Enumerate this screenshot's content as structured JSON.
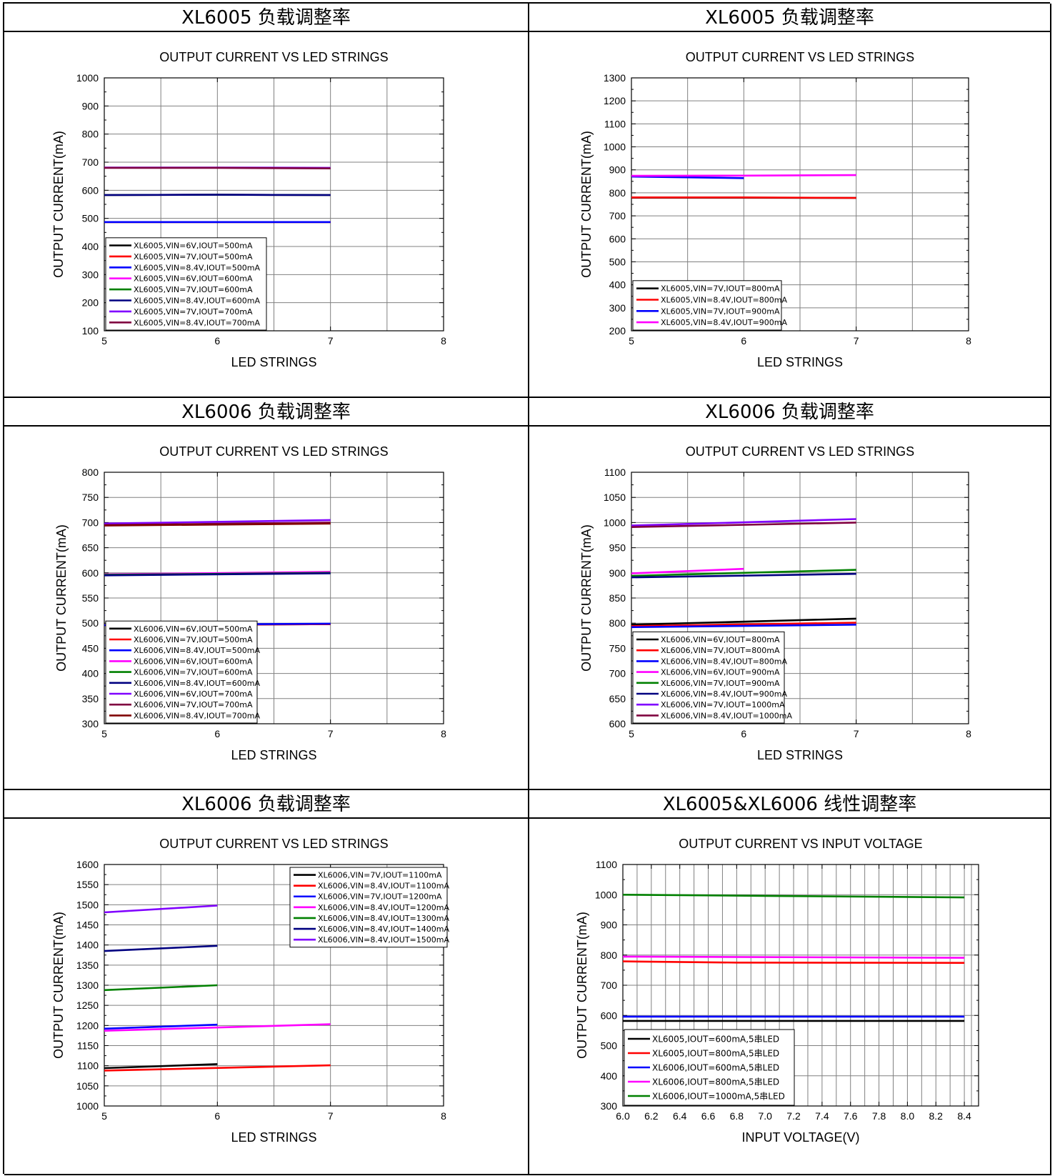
{
  "panels": [
    {
      "heading": "XL6005 负载调整率",
      "chart_data": {
        "type": "line",
        "title": "OUTPUT CURRENT VS LED STRINGS",
        "xlabel": "LED STRINGS",
        "ylabel": "OUTPUT CURRENT(mA)",
        "xlim": [
          5,
          8
        ],
        "ylim": [
          100,
          1000
        ],
        "xticks": [
          5,
          6,
          7,
          8
        ],
        "xtick_labels": [
          "5",
          "6",
          "7",
          "8"
        ],
        "yticks": [
          100,
          200,
          300,
          400,
          500,
          600,
          700,
          800,
          900,
          1000
        ],
        "ytick_labels": [
          "100",
          "200",
          "300",
          "400",
          "500",
          "600",
          "700",
          "800",
          "900",
          "1000"
        ],
        "grid": true,
        "legend_position": "bottom-left",
        "series": [
          {
            "name": "XL6005,VIN=6V,IOUT=500mA",
            "color": "#000000",
            "x": [
              5,
              6,
              7
            ],
            "y": [
              487,
              487,
              487
            ]
          },
          {
            "name": "XL6005,VIN=7V,IOUT=500mA",
            "color": "#ff0000",
            "x": [
              5,
              6,
              7
            ],
            "y": [
              487,
              487,
              487
            ]
          },
          {
            "name": "XL6005,VIN=8.4V,IOUT=500mA",
            "color": "#0000ff",
            "x": [
              5,
              6,
              7
            ],
            "y": [
              487,
              487,
              487
            ]
          },
          {
            "name": "XL6005,VIN=6V,IOUT=600mA",
            "color": "#ff00ff",
            "x": [
              5,
              6,
              7
            ],
            "y": [
              583,
              584,
              583
            ]
          },
          {
            "name": "XL6005,VIN=7V,IOUT=600mA",
            "color": "#008000",
            "x": [
              5,
              6,
              7
            ],
            "y": [
              583,
              584,
              583
            ]
          },
          {
            "name": "XL6005,VIN=8.4V,IOUT=600mA",
            "color": "#000080",
            "x": [
              5,
              6,
              7
            ],
            "y": [
              583,
              584,
              583
            ]
          },
          {
            "name": "XL6005,VIN=7V,IOUT=700mA",
            "color": "#8000ff",
            "x": [
              5,
              6,
              7
            ],
            "y": [
              681,
              681,
              680
            ]
          },
          {
            "name": "XL6005,VIN=8.4V,IOUT=700mA",
            "color": "#800040",
            "x": [
              5,
              6,
              7
            ],
            "y": [
              680,
              680,
              678
            ]
          }
        ]
      }
    },
    {
      "heading": "XL6005 负载调整率",
      "chart_data": {
        "type": "line",
        "title": "OUTPUT CURRENT VS LED STRINGS",
        "xlabel": "LED STRINGS",
        "ylabel": "OUTPUT CURRENT(mA)",
        "xlim": [
          5,
          8
        ],
        "ylim": [
          200,
          1300
        ],
        "xticks": [
          5,
          6,
          7,
          8
        ],
        "xtick_labels": [
          "5",
          "6",
          "7",
          "8"
        ],
        "yticks": [
          200,
          300,
          400,
          500,
          600,
          700,
          800,
          900,
          1000,
          1100,
          1200,
          1300
        ],
        "ytick_labels": [
          "200",
          "300",
          "400",
          "500",
          "600",
          "700",
          "800",
          "900",
          "1000",
          "1100",
          "1200",
          "1300"
        ],
        "grid": true,
        "legend_position": "bottom-left",
        "series": [
          {
            "name": "XL6005,VIN=7V,IOUT=800mA",
            "color": "#000000",
            "x": [
              5,
              6,
              7
            ],
            "y": [
              779,
              779,
              778
            ]
          },
          {
            "name": "XL6005,VIN=8.4V,IOUT=800mA",
            "color": "#ff0000",
            "x": [
              5,
              6,
              7
            ],
            "y": [
              780,
              780,
              778
            ]
          },
          {
            "name": "XL6005,VIN=7V,IOUT=900mA",
            "color": "#0000ff",
            "x": [
              5,
              6
            ],
            "y": [
              871,
              864
            ]
          },
          {
            "name": "XL6005,VIN=8.4V,IOUT=900mA",
            "color": "#ff00ff",
            "x": [
              5,
              6,
              7
            ],
            "y": [
              874,
              875,
              877
            ]
          }
        ]
      }
    },
    {
      "heading": "XL6006 负载调整率",
      "chart_data": {
        "type": "line",
        "title": "OUTPUT CURRENT VS LED STRINGS",
        "xlabel": "LED STRINGS",
        "ylabel": "OUTPUT CURRENT(mA)",
        "xlim": [
          5,
          8
        ],
        "ylim": [
          300,
          800
        ],
        "xticks": [
          5,
          6,
          7,
          8
        ],
        "xtick_labels": [
          "5",
          "6",
          "7",
          "8"
        ],
        "yticks": [
          300,
          350,
          400,
          450,
          500,
          550,
          600,
          650,
          700,
          750,
          800
        ],
        "ytick_labels": [
          "300",
          "350",
          "400",
          "450",
          "500",
          "550",
          "600",
          "650",
          "700",
          "750",
          "800"
        ],
        "grid": true,
        "legend_position": "bottom-left",
        "series": [
          {
            "name": "XL6006,VIN=6V,IOUT=500mA",
            "color": "#000000",
            "x": [
              5,
              7
            ],
            "y": [
              496,
              498
            ]
          },
          {
            "name": "XL6006,VIN=7V,IOUT=500mA",
            "color": "#ff0000",
            "x": [
              5,
              7
            ],
            "y": [
              496,
              498
            ]
          },
          {
            "name": "XL6006,VIN=8.4V,IOUT=500mA",
            "color": "#0000ff",
            "x": [
              5,
              7
            ],
            "y": [
              496,
              499
            ]
          },
          {
            "name": "XL6006,VIN=6V,IOUT=600mA",
            "color": "#ff00ff",
            "x": [
              5,
              7
            ],
            "y": [
              597,
              602
            ]
          },
          {
            "name": "XL6006,VIN=7V,IOUT=600mA",
            "color": "#008000",
            "x": [
              5,
              7
            ],
            "y": [
              596,
              600
            ]
          },
          {
            "name": "XL6006,VIN=8.4V,IOUT=600mA",
            "color": "#000080",
            "x": [
              5,
              7
            ],
            "y": [
              595,
              599
            ]
          },
          {
            "name": "XL6006,VIN=6V,IOUT=700mA",
            "color": "#8000ff",
            "x": [
              5,
              7
            ],
            "y": [
              698,
              705
            ]
          },
          {
            "name": "XL6006,VIN=7V,IOUT=700mA",
            "color": "#800040",
            "x": [
              5,
              7
            ],
            "y": [
              695,
              700
            ]
          },
          {
            "name": "XL6006,VIN=8.4V,IOUT=700mA",
            "color": "#800000",
            "x": [
              5,
              7
            ],
            "y": [
              694,
              698
            ]
          }
        ]
      }
    },
    {
      "heading": "XL6006 负载调整率",
      "chart_data": {
        "type": "line",
        "title": "OUTPUT CURRENT VS LED STRINGS",
        "xlabel": "LED STRINGS",
        "ylabel": "OUTPUT CURRENT(mA)",
        "xlim": [
          5,
          8
        ],
        "ylim": [
          600,
          1100
        ],
        "xticks": [
          5,
          6,
          7,
          8
        ],
        "xtick_labels": [
          "5",
          "6",
          "7",
          "8"
        ],
        "yticks": [
          600,
          650,
          700,
          750,
          800,
          850,
          900,
          950,
          1000,
          1050,
          1100
        ],
        "ytick_labels": [
          "600",
          "650",
          "700",
          "750",
          "800",
          "850",
          "900",
          "950",
          "1000",
          "1050",
          "1100"
        ],
        "grid": true,
        "legend_position": "bottom-left",
        "series": [
          {
            "name": "XL6006,VIN=6V,IOUT=800mA",
            "color": "#000000",
            "x": [
              5,
              7
            ],
            "y": [
              797,
              809
            ]
          },
          {
            "name": "XL6006,VIN=7V,IOUT=800mA",
            "color": "#ff0000",
            "x": [
              5,
              7
            ],
            "y": [
              794,
              801
            ]
          },
          {
            "name": "XL6006,VIN=8.4V,IOUT=800mA",
            "color": "#0000ff",
            "x": [
              5,
              7
            ],
            "y": [
              792,
              797
            ]
          },
          {
            "name": "XL6006,VIN=6V,IOUT=900mA",
            "color": "#ff00ff",
            "x": [
              5,
              6
            ],
            "y": [
              899,
              908
            ]
          },
          {
            "name": "XL6006,VIN=7V,IOUT=900mA",
            "color": "#008000",
            "x": [
              5,
              7
            ],
            "y": [
              894,
              906
            ]
          },
          {
            "name": "XL6006,VIN=8.4V,IOUT=900mA",
            "color": "#000080",
            "x": [
              5,
              7
            ],
            "y": [
              891,
              898
            ]
          },
          {
            "name": "XL6006,VIN=7V,IOUT=1000mA",
            "color": "#8000ff",
            "x": [
              5,
              7
            ],
            "y": [
              994,
              1007
            ]
          },
          {
            "name": "XL6006,VIN=8.4V,IOUT=1000mA",
            "color": "#800040",
            "x": [
              5,
              7
            ],
            "y": [
              991,
              1000
            ]
          }
        ]
      }
    },
    {
      "heading": "XL6006 负载调整率",
      "chart_data": {
        "type": "line",
        "title": "OUTPUT CURRENT VS LED STRINGS",
        "xlabel": "LED STRINGS",
        "ylabel": "OUTPUT CURRENT(mA)",
        "xlim": [
          5,
          8
        ],
        "ylim": [
          1000,
          1600
        ],
        "xticks": [
          5,
          6,
          7,
          8
        ],
        "xtick_labels": [
          "5",
          "6",
          "7",
          "8"
        ],
        "yticks": [
          1000,
          1050,
          1100,
          1150,
          1200,
          1250,
          1300,
          1350,
          1400,
          1450,
          1500,
          1550,
          1600
        ],
        "ytick_labels": [
          "1000",
          "1050",
          "1100",
          "1150",
          "1200",
          "1250",
          "1300",
          "1350",
          "1400",
          "1450",
          "1500",
          "1550",
          "1600"
        ],
        "grid": true,
        "legend_position": "top-right",
        "series": [
          {
            "name": "XL6006,VIN=7V,IOUT=1100mA",
            "color": "#000000",
            "x": [
              5,
              6
            ],
            "y": [
              1094,
              1104
            ]
          },
          {
            "name": "XL6006,VIN=8.4V,IOUT=1100mA",
            "color": "#ff0000",
            "x": [
              5,
              7
            ],
            "y": [
              1088,
              1101
            ]
          },
          {
            "name": "XL6006,VIN=7V,IOUT=1200mA",
            "color": "#0000ff",
            "x": [
              5,
              6
            ],
            "y": [
              1192,
              1202
            ]
          },
          {
            "name": "XL6006,VIN=8.4V,IOUT=1200mA",
            "color": "#ff00ff",
            "x": [
              5,
              7
            ],
            "y": [
              1187,
              1203
            ]
          },
          {
            "name": "XL6006,VIN=8.4V,IOUT=1300mA",
            "color": "#008000",
            "x": [
              5,
              6
            ],
            "y": [
              1288,
              1300
            ]
          },
          {
            "name": "XL6006,VIN=8.4V,IOUT=1400mA",
            "color": "#000080",
            "x": [
              5,
              6
            ],
            "y": [
              1385,
              1398
            ]
          },
          {
            "name": "XL6006,VIN=8.4V,IOUT=1500mA",
            "color": "#8000ff",
            "x": [
              5,
              6
            ],
            "y": [
              1481,
              1498
            ]
          }
        ]
      }
    },
    {
      "heading": "XL6005&XL6006 线性调整率",
      "chart_data": {
        "type": "line",
        "title": "OUTPUT CURRENT VS INPUT VOLTAGE",
        "xlabel": "INPUT VOLTAGE(V)",
        "ylabel": "OUTPUT CURRENT(mA)",
        "xlim": [
          6.0,
          8.5
        ],
        "ylim": [
          300,
          1100
        ],
        "xticks": [
          6.0,
          6.2,
          6.4,
          6.6,
          6.8,
          7.0,
          7.2,
          7.4,
          7.6,
          7.8,
          8.0,
          8.2,
          8.4
        ],
        "xtick_labels": [
          "6.0",
          "6.2",
          "6.4",
          "6.6",
          "6.8",
          "7.0",
          "7.2",
          "7.4",
          "7.6",
          "7.8",
          "8.0",
          "8.2",
          "8.4"
        ],
        "yticks": [
          300,
          400,
          500,
          600,
          700,
          800,
          900,
          1000,
          1100
        ],
        "ytick_labels": [
          "300",
          "400",
          "500",
          "600",
          "700",
          "800",
          "900",
          "1000",
          "1100"
        ],
        "grid": true,
        "legend_position": "bottom-left",
        "series": [
          {
            "name": "XL6005,IOUT=600mA,5串LED",
            "color": "#000000",
            "x": [
              6.0,
              8.4
            ],
            "y": [
              582,
              582
            ]
          },
          {
            "name": "XL6005,IOUT=800mA,5串LED",
            "color": "#ff0000",
            "x": [
              6.0,
              6.8,
              8.4
            ],
            "y": [
              779,
              775,
              774
            ]
          },
          {
            "name": "XL6006,IOUT=600mA,5串LED",
            "color": "#0000ff",
            "x": [
              6.0,
              8.4
            ],
            "y": [
              596,
              596
            ]
          },
          {
            "name": "XL6006,IOUT=800mA,5串LED",
            "color": "#ff00ff",
            "x": [
              6.0,
              8.4
            ],
            "y": [
              795,
              791
            ]
          },
          {
            "name": "XL6006,IOUT=1000mA,5串LED",
            "color": "#008000",
            "x": [
              6.0,
              7.0,
              8.4
            ],
            "y": [
              1000,
              996,
              991
            ]
          }
        ]
      }
    }
  ]
}
